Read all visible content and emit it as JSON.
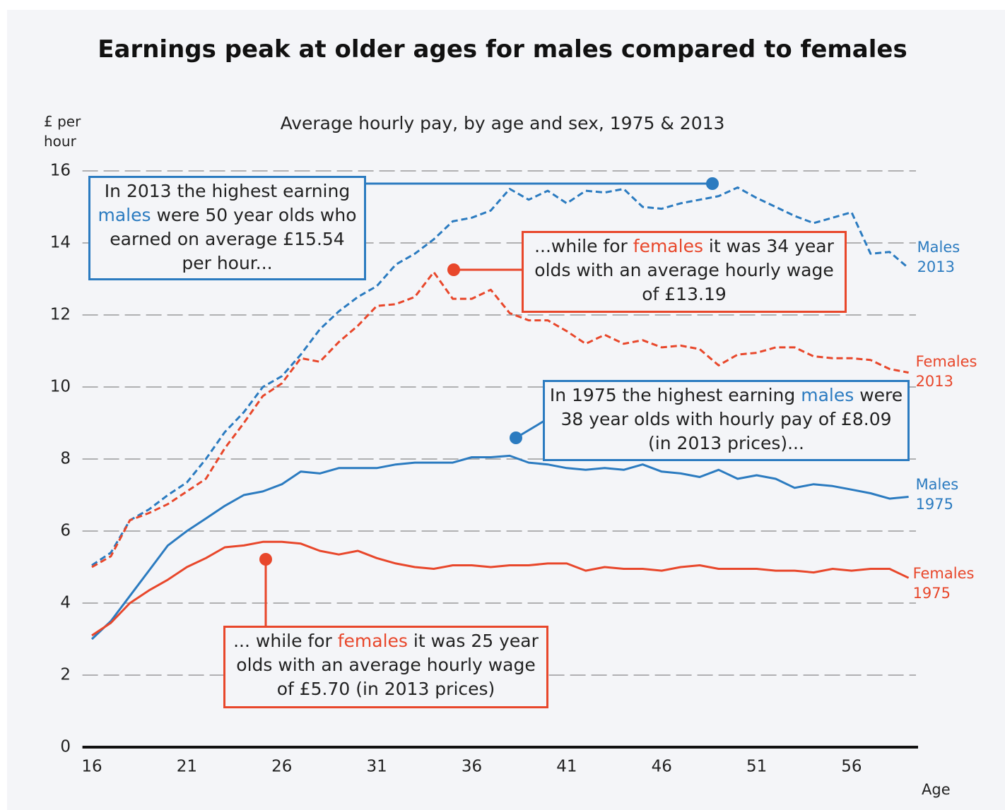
{
  "chart_data": {
    "type": "line",
    "title": "Earnings peak at older ages for males compared to females",
    "subtitle": "Average hourly pay, by age and sex, 1975 & 2013",
    "y_label": "£ per hour",
    "x_label": "Age",
    "x": [
      16,
      17,
      18,
      19,
      20,
      21,
      22,
      23,
      24,
      25,
      26,
      27,
      28,
      29,
      30,
      31,
      32,
      33,
      34,
      35,
      36,
      37,
      38,
      39,
      40,
      41,
      42,
      43,
      44,
      45,
      46,
      47,
      48,
      49,
      50,
      51,
      52,
      53,
      54,
      55,
      56,
      57,
      58,
      59
    ],
    "xlim": [
      15.5,
      59.5
    ],
    "xticks": [
      16,
      21,
      26,
      31,
      36,
      41,
      46,
      51,
      56
    ],
    "ylim": [
      0,
      16
    ],
    "yticks": [
      0,
      2,
      4,
      6,
      8,
      10,
      12,
      14,
      16
    ],
    "grid": true,
    "series": [
      {
        "name": "Males 2013",
        "color": "#2b7bc0",
        "style": "dashed",
        "values": [
          5.05,
          5.4,
          6.3,
          6.6,
          7.0,
          7.35,
          8.0,
          8.75,
          9.3,
          10.0,
          10.3,
          10.9,
          11.6,
          12.1,
          12.5,
          12.8,
          13.4,
          13.7,
          14.1,
          14.6,
          14.7,
          14.9,
          15.5,
          15.2,
          15.45,
          15.1,
          15.45,
          15.4,
          15.5,
          15.0,
          14.95,
          15.1,
          15.2,
          15.3,
          15.54,
          15.25,
          15.0,
          14.75,
          14.55,
          14.7,
          14.85,
          13.7,
          13.75,
          13.3
        ]
      },
      {
        "name": "Females 2013",
        "color": "#e8472b",
        "style": "dashed",
        "values": [
          5.0,
          5.3,
          6.3,
          6.5,
          6.75,
          7.1,
          7.45,
          8.3,
          9.0,
          9.75,
          10.1,
          10.8,
          10.7,
          11.25,
          11.7,
          12.25,
          12.3,
          12.5,
          13.19,
          12.45,
          12.45,
          12.7,
          12.05,
          11.85,
          11.85,
          11.55,
          11.2,
          11.45,
          11.2,
          11.3,
          11.1,
          11.15,
          11.05,
          10.6,
          10.9,
          10.95,
          11.1,
          11.1,
          10.85,
          10.8,
          10.8,
          10.75,
          10.5,
          10.4
        ]
      },
      {
        "name": "Males 1975",
        "color": "#2b7bc0",
        "style": "solid",
        "values": [
          3.0,
          3.5,
          4.2,
          4.9,
          5.6,
          6.0,
          6.35,
          6.7,
          7.0,
          7.1,
          7.3,
          7.65,
          7.6,
          7.75,
          7.75,
          7.75,
          7.85,
          7.9,
          7.9,
          7.9,
          8.05,
          8.05,
          8.09,
          7.9,
          7.85,
          7.75,
          7.7,
          7.75,
          7.7,
          7.85,
          7.65,
          7.6,
          7.5,
          7.7,
          7.45,
          7.55,
          7.45,
          7.2,
          7.3,
          7.25,
          7.15,
          7.05,
          6.9,
          6.95
        ]
      },
      {
        "name": "Females 1975",
        "color": "#e8472b",
        "style": "solid",
        "values": [
          3.1,
          3.45,
          4.0,
          4.35,
          4.65,
          5.0,
          5.25,
          5.55,
          5.6,
          5.7,
          5.7,
          5.65,
          5.45,
          5.35,
          5.45,
          5.25,
          5.1,
          5.0,
          4.95,
          5.05,
          5.05,
          5.0,
          5.05,
          5.05,
          5.1,
          5.1,
          4.9,
          5.0,
          4.95,
          4.95,
          4.9,
          5.0,
          5.05,
          4.95,
          4.95,
          4.95,
          4.9,
          4.9,
          4.85,
          4.95,
          4.9,
          4.95,
          4.95,
          4.7
        ]
      }
    ],
    "annotations": [
      {
        "parts": [
          "In 2013 the highest earning ",
          "males",
          " were 50 year olds who earned on average £15.54 per hour..."
        ],
        "color": "#2b7bc0"
      },
      {
        "parts": [
          "...while for ",
          "females",
          " it was 34 year olds with an average hourly wage of £13.19"
        ],
        "color": "#e8472b"
      },
      {
        "parts": [
          "In 1975 the highest earning ",
          "males",
          " were 38 year olds with hourly pay of £8.09 (in 2013 prices)..."
        ],
        "color": "#2b7bc0"
      },
      {
        "parts": [
          "... while for ",
          "females",
          " it was 25 year olds with an average hourly wage of £5.70 (in 2013 prices)"
        ],
        "color": "#e8472b"
      }
    ]
  }
}
